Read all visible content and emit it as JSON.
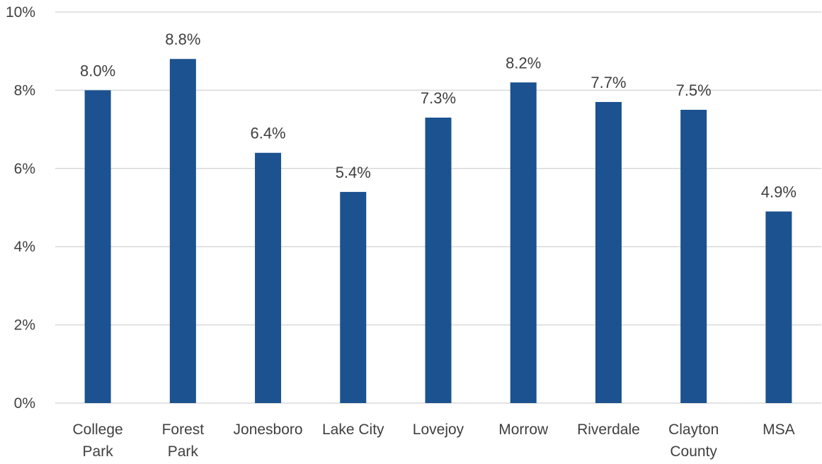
{
  "chart_data": {
    "type": "bar",
    "categories": [
      [
        "College",
        "Park"
      ],
      [
        "Forest",
        "Park"
      ],
      [
        "Jonesboro"
      ],
      [
        "Lake City"
      ],
      [
        "Lovejoy"
      ],
      [
        "Morrow"
      ],
      [
        "Riverdale"
      ],
      [
        "Clayton",
        "County"
      ],
      [
        "MSA"
      ]
    ],
    "values": [
      8.0,
      8.8,
      6.4,
      5.4,
      7.3,
      8.2,
      7.7,
      7.5,
      4.9
    ],
    "data_labels": [
      "8.0%",
      "8.8%",
      "6.4%",
      "5.4%",
      "7.3%",
      "8.2%",
      "7.7%",
      "7.5%",
      "4.9%"
    ],
    "y_ticks": [
      0,
      2,
      4,
      6,
      8,
      10
    ],
    "y_tick_labels": [
      "0%",
      "2%",
      "4%",
      "6%",
      "8%",
      "10%"
    ],
    "ylim": [
      0,
      10
    ],
    "grid": "horizontal",
    "legend": "none",
    "colors": {
      "bar": "#1b528f",
      "grid": "#d9d9d9",
      "text": "#404040"
    }
  }
}
